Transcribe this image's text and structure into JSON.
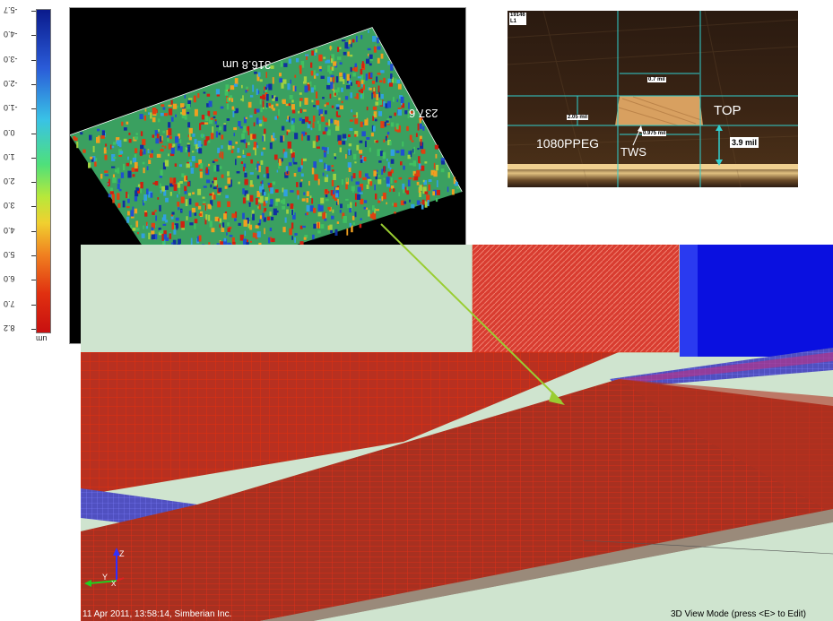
{
  "colorbar": {
    "ticks": [
      "-5.7",
      "-4.0",
      "-3.0",
      "-2.0",
      "-1.0",
      "0.0",
      "1.0",
      "2.0",
      "3.0",
      "4.0",
      "5.0",
      "6.0",
      "7.0",
      "8.2"
    ],
    "unit": "um"
  },
  "surface": {
    "label_length": "316.8 um",
    "label_width": "237.6"
  },
  "cross_section": {
    "id_line1": "19146",
    "id_line2": "L1",
    "dim_top": "0.7 mil",
    "dim_left": "2.05 mil",
    "dim_bottom": "0.975 mil",
    "dim_thickness": "3.9 mil",
    "label_top": "TOP",
    "label_dielectric": "1080PPEG",
    "label_tws": "TWS"
  },
  "mesh_view": {
    "axis_z": "Z",
    "axis_y": "Y",
    "axis_x": "X",
    "status_left": "11 Apr 2011, 13:58:14, Simberian Inc.",
    "status_right": "3D View Mode (press <E> to Edit)"
  },
  "colors": {
    "mesh_red": "#d02010",
    "mesh_blue": "#0a10e0",
    "background_green": "#cfe4cf",
    "arrow_green": "#9acd32"
  }
}
